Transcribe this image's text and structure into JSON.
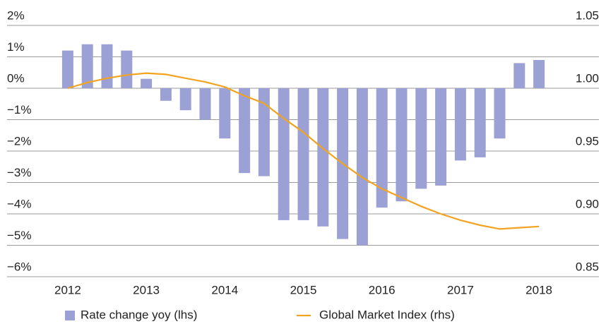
{
  "chart_data": {
    "type": "bar",
    "categories": [
      "2012",
      null,
      null,
      null,
      "2013",
      null,
      null,
      null,
      "2014",
      null,
      null,
      null,
      "2015",
      null,
      null,
      null,
      "2016",
      null,
      null,
      null,
      "2017",
      null,
      null,
      null,
      "2018"
    ],
    "series": [
      {
        "name": "Rate change yoy (lhs)",
        "type": "bar",
        "color": "#9ca1d5",
        "values": [
          1.2,
          1.4,
          1.4,
          1.2,
          0.3,
          -0.4,
          -0.7,
          -1.0,
          -1.6,
          -2.7,
          -2.8,
          -4.2,
          -4.2,
          -4.4,
          -4.8,
          -5.0,
          -3.8,
          -3.6,
          -3.2,
          -3.1,
          -2.3,
          -2.2,
          -1.6,
          0.8,
          0.9
        ]
      },
      {
        "name": "Global Market Index (rhs)",
        "type": "line",
        "axis": "y2",
        "color": "#f2a31f",
        "values": [
          1.0,
          1.0045,
          1.008,
          1.0105,
          1.012,
          1.011,
          1.008,
          1.005,
          1.001,
          0.994,
          0.988,
          0.976,
          0.965,
          0.952,
          0.94,
          0.929,
          0.92,
          0.913,
          0.906,
          0.9,
          0.895,
          0.891,
          0.888,
          0.889,
          0.89
        ]
      }
    ],
    "ylim": [
      -6,
      2
    ],
    "yticks": [
      {
        "value": 2,
        "label": "2%"
      },
      {
        "value": 1,
        "label": "1%"
      },
      {
        "value": 0,
        "label": "0%"
      },
      {
        "value": -1,
        "label": "−1%"
      },
      {
        "value": -2,
        "label": "−2%"
      },
      {
        "value": -3,
        "label": "−3%"
      },
      {
        "value": -4,
        "label": "−4%"
      },
      {
        "value": -5,
        "label": "−5%"
      },
      {
        "value": -6,
        "label": "−6%"
      }
    ],
    "y2lim": [
      0.85,
      1.05
    ],
    "y2ticks": [
      1.05,
      {
        "value": 1,
        "label": "1.00"
      },
      0.95,
      {
        "value": 0.9,
        "label": "0.90"
      },
      0.85
    ],
    "grid": true
  }
}
